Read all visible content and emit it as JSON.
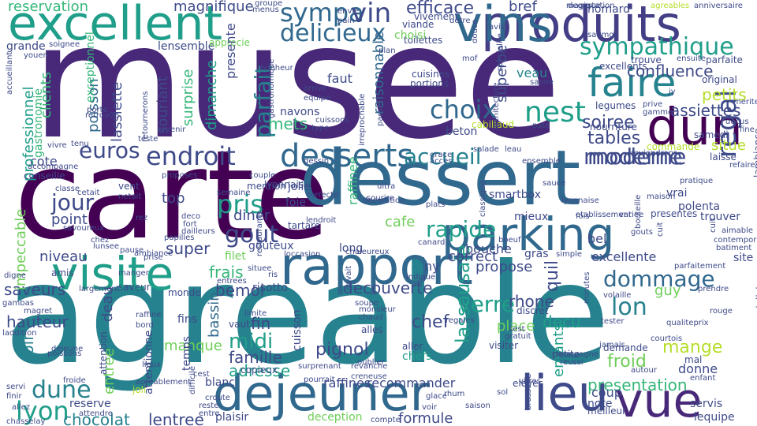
{
  "palette": {
    "c0": "#440154",
    "c1": "#482878",
    "c2": "#3e4a89",
    "c3": "#31688e",
    "c4": "#26828e",
    "c5": "#1f9e89",
    "c6": "#35b779",
    "c7": "#6ece58",
    "c8": "#b5de2b",
    "c9": "#fde725",
    "c10": "#433e85",
    "c11": "#2a788e"
  },
  "words": [
    {
      "text": "musee",
      "color": "c1"
    },
    {
      "text": "carte",
      "color": "c0"
    },
    {
      "text": "agreable",
      "color": "c4"
    },
    {
      "text": "dessert",
      "color": "c3"
    },
    {
      "text": "produits",
      "color": "c10"
    },
    {
      "text": "vins",
      "color": "c3"
    },
    {
      "text": "excellent",
      "color": "c5"
    },
    {
      "text": "rapport",
      "color": "c3"
    },
    {
      "text": "visite",
      "color": "c5"
    },
    {
      "text": "parking",
      "color": "c3"
    },
    {
      "text": "dejeuner",
      "color": "c3"
    },
    {
      "text": "lieu",
      "color": "c2"
    },
    {
      "text": "vue",
      "color": "c1"
    },
    {
      "text": "dun",
      "color": "c0"
    },
    {
      "text": "faire",
      "color": "c4"
    },
    {
      "text": "moment",
      "color": "c8"
    },
    {
      "text": "desserts",
      "color": "c3"
    },
    {
      "text": "endroit",
      "color": "c2"
    },
    {
      "text": "nest",
      "color": "c5"
    },
    {
      "text": "choix",
      "color": "c3"
    },
    {
      "text": "sympathique",
      "color": "c5"
    },
    {
      "text": "delicieux",
      "color": "c3"
    },
    {
      "text": "sympa",
      "color": "c3"
    },
    {
      "text": "vin",
      "color": "c2"
    },
    {
      "text": "efficace",
      "color": "c2"
    },
    {
      "text": "reservation",
      "color": "c6"
    },
    {
      "text": "magnifique",
      "color": "c2"
    },
    {
      "text": "dommage",
      "color": "c3"
    },
    {
      "text": "lon",
      "color": "c4"
    },
    {
      "text": "accueil",
      "color": "c4"
    },
    {
      "text": "moderne",
      "color": "c2"
    },
    {
      "text": "rapide",
      "color": "c5"
    },
    {
      "text": "jour",
      "color": "c2"
    },
    {
      "text": "pris",
      "color": "c5"
    },
    {
      "text": "gout",
      "color": "c2"
    },
    {
      "text": "euros",
      "color": "c2"
    },
    {
      "text": "parfait",
      "color": "c4"
    },
    {
      "text": "lassausaie",
      "color": "c5"
    },
    {
      "text": "verre",
      "color": "c5"
    },
    {
      "text": "midi",
      "color": "c5"
    },
    {
      "text": "dune",
      "color": "c4"
    },
    {
      "text": "lyon",
      "color": "c5"
    },
    {
      "text": "chocolat",
      "color": "c4"
    },
    {
      "text": "lentree",
      "color": "c2"
    },
    {
      "text": "formule",
      "color": "c2"
    },
    {
      "text": "mange",
      "color": "c8"
    },
    {
      "text": "froid",
      "color": "c7"
    },
    {
      "text": "regal",
      "color": "c2"
    },
    {
      "text": "tables",
      "color": "c2"
    },
    {
      "text": "soiree",
      "color": "c2"
    },
    {
      "text": "assiettes",
      "color": "c2"
    },
    {
      "text": "petits",
      "color": "c8"
    },
    {
      "text": "confluence",
      "color": "c2"
    },
    {
      "text": "veau",
      "color": "c4"
    },
    {
      "text": "faut",
      "color": "c2"
    },
    {
      "text": "mets",
      "color": "c6"
    },
    {
      "text": "cote",
      "color": "c2"
    },
    {
      "text": "top",
      "color": "c2"
    },
    {
      "text": "point",
      "color": "c2"
    },
    {
      "text": "niveau",
      "color": "c2"
    },
    {
      "text": "super",
      "color": "c2"
    },
    {
      "text": "saveurs",
      "color": "c2"
    },
    {
      "text": "hauteur",
      "color": "c2"
    },
    {
      "text": "chef",
      "color": "c2"
    },
    {
      "text": "pignol",
      "color": "c2"
    },
    {
      "text": "famille",
      "color": "c2"
    },
    {
      "text": "adresse",
      "color": "c5"
    },
    {
      "text": "fin",
      "color": "c2"
    },
    {
      "text": "decu",
      "color": "c5"
    },
    {
      "text": "quil",
      "color": "c2"
    },
    {
      "text": "presentation",
      "color": "c6"
    },
    {
      "text": "bemol",
      "color": "c2"
    },
    {
      "text": "frais",
      "color": "c6"
    },
    {
      "text": "propose",
      "color": "c2"
    },
    {
      "text": "correct",
      "color": "c2"
    },
    {
      "text": "rhone",
      "color": "c2"
    },
    {
      "text": "decouverte",
      "color": "c2"
    },
    {
      "text": "cafe",
      "color": "c7"
    },
    {
      "text": "manque",
      "color": "c7"
    },
    {
      "text": "recommander",
      "color": "c2"
    },
    {
      "text": "raffines",
      "color": "c2"
    },
    {
      "text": "excellente",
      "color": "c2"
    },
    {
      "text": "guy",
      "color": "c7"
    },
    {
      "text": "situe",
      "color": "c8"
    },
    {
      "text": "bref",
      "color": "c2"
    },
    {
      "text": "superbe",
      "color": "c2"
    },
    {
      "text": "raisonnable",
      "color": "c3"
    },
    {
      "text": "clients",
      "color": "c6"
    },
    {
      "text": "poisson",
      "color": "c3"
    },
    {
      "text": "professionnel",
      "color": "c5"
    },
    {
      "text": "impeccable",
      "color": "c7"
    },
    {
      "text": "soir",
      "color": "c4"
    },
    {
      "text": "entree",
      "color": "c7"
    },
    {
      "text": "deau",
      "color": "c2"
    },
    {
      "text": "bassin",
      "color": "c3"
    },
    {
      "text": "diner",
      "color": "c2"
    },
    {
      "text": "jolie",
      "color": "c2"
    },
    {
      "text": "foie",
      "color": "c2"
    },
    {
      "text": "place",
      "color": "c7"
    },
    {
      "text": "lequipe",
      "color": "c2"
    },
    {
      "text": "servis",
      "color": "c2"
    },
    {
      "text": "donne",
      "color": "c2"
    },
    {
      "text": "coup",
      "color": "c2"
    },
    {
      "text": "note",
      "color": "c2"
    },
    {
      "text": "enfants",
      "color": "c5"
    },
    {
      "text": "bouche",
      "color": "c2"
    },
    {
      "text": "gras",
      "color": "c2"
    },
    {
      "text": "reserve",
      "color": "c2"
    },
    {
      "text": "plaisir",
      "color": "c2"
    },
    {
      "text": "chefs",
      "color": "c5"
    },
    {
      "text": "blanc",
      "color": "c2"
    },
    {
      "text": "deception",
      "color": "c7"
    },
    {
      "text": "temps",
      "color": "c2"
    },
    {
      "text": "risotto",
      "color": "c2"
    },
    {
      "text": "fins",
      "color": "c2"
    },
    {
      "text": "vaut",
      "color": "c2"
    },
    {
      "text": "filet",
      "color": "c7"
    },
    {
      "text": "gouteux",
      "color": "c2"
    },
    {
      "text": "tartare",
      "color": "c2"
    },
    {
      "text": "long",
      "color": "c2"
    },
    {
      "text": "raffinee",
      "color": "c6"
    },
    {
      "text": "mieux",
      "color": "c2"
    },
    {
      "text": "smartbox",
      "color": "c2"
    },
    {
      "text": "polenta",
      "color": "c2"
    },
    {
      "text": "vrai",
      "color": "c2"
    },
    {
      "text": "trouver",
      "color": "c2"
    },
    {
      "text": "presentes",
      "color": "c2"
    },
    {
      "text": "bel",
      "color": "c2"
    },
    {
      "text": "site",
      "color": "c2"
    },
    {
      "text": "moderne",
      "color": "c2"
    },
    {
      "text": "beton",
      "color": "c2"
    },
    {
      "text": "cabillaud",
      "color": "c8"
    },
    {
      "text": "legumes",
      "color": "c2"
    },
    {
      "text": "nourriture",
      "color": "c2"
    },
    {
      "text": "samedi",
      "color": "c2"
    },
    {
      "text": "commande",
      "color": "c8"
    },
    {
      "text": "laisse",
      "color": "c2"
    },
    {
      "text": "excellents",
      "color": "c2"
    },
    {
      "text": "trouve",
      "color": "c2"
    },
    {
      "text": "ensuite",
      "color": "c2"
    },
    {
      "text": "parfaite",
      "color": "c2"
    },
    {
      "text": "original",
      "color": "c2"
    },
    {
      "text": "homard",
      "color": "c2"
    },
    {
      "text": "cuisines",
      "color": "c2"
    },
    {
      "text": "portions",
      "color": "c2"
    },
    {
      "text": "toilettes",
      "color": "c2"
    },
    {
      "text": "choisi",
      "color": "c7"
    },
    {
      "text": "viande",
      "color": "c2"
    },
    {
      "text": "vivement",
      "color": "c2"
    },
    {
      "text": "conseille",
      "color": "c2"
    },
    {
      "text": "surprise",
      "color": "c6"
    },
    {
      "text": "dimanche",
      "color": "c5"
    },
    {
      "text": "souriant",
      "color": "c2"
    },
    {
      "text": "lassiette",
      "color": "c2"
    },
    {
      "text": "lensemble",
      "color": "c2"
    },
    {
      "text": "grande",
      "color": "c2"
    },
    {
      "text": "lyonnais",
      "color": "c2"
    },
    {
      "text": "mention",
      "color": "c2"
    },
    {
      "text": "semaine",
      "color": "c2"
    },
    {
      "text": "vent",
      "color": "c2"
    },
    {
      "text": "amis",
      "color": "c2"
    },
    {
      "text": "monde",
      "color": "c2"
    },
    {
      "text": "saveur",
      "color": "c2"
    },
    {
      "text": "copieux",
      "color": "c2"
    },
    {
      "text": "alles",
      "color": "c2"
    },
    {
      "text": "aller",
      "color": "c2"
    },
    {
      "text": "visiter",
      "color": "c2"
    },
    {
      "text": "demande",
      "color": "c2"
    },
    {
      "text": "mal",
      "color": "c2"
    },
    {
      "text": "joli",
      "color": "c8"
    },
    {
      "text": "servi",
      "color": "c2"
    },
    {
      "text": "croute",
      "color": "c2"
    },
    {
      "text": "glace",
      "color": "c2"
    },
    {
      "text": "voir",
      "color": "c2"
    },
    {
      "text": "sol",
      "color": "c2"
    },
    {
      "text": "meilleur",
      "color": "c2"
    },
    {
      "text": "apprecie",
      "color": "c7"
    },
    {
      "text": "plan",
      "color": "c2"
    },
    {
      "text": "degustation",
      "color": "c2"
    },
    {
      "text": "anniversaire",
      "color": "c2"
    },
    {
      "text": "agreables",
      "color": "c8"
    },
    {
      "text": "saumon",
      "color": "c2"
    },
    {
      "text": "arrive",
      "color": "c2"
    },
    {
      "text": "equipe",
      "color": "c2"
    },
    {
      "text": "bonheur",
      "color": "c2"
    },
    {
      "text": "exceptionnel",
      "color": "c6"
    },
    {
      "text": "gastronomie",
      "color": "c6"
    },
    {
      "text": "gastronomique",
      "color": "c2"
    },
    {
      "text": "navons",
      "color": "c2"
    },
    {
      "text": "retournerons",
      "color": "c2"
    },
    {
      "text": "accompagne",
      "color": "c2"
    },
    {
      "text": "ultra",
      "color": "c2"
    },
    {
      "text": "sourire",
      "color": "c2"
    },
    {
      "text": "loccasion",
      "color": "c2"
    },
    {
      "text": "classique",
      "color": "c2"
    },
    {
      "text": "reviendrons",
      "color": "c2"
    },
    {
      "text": "grace",
      "color": "c2"
    },
    {
      "text": "acces",
      "color": "c2"
    },
    {
      "text": "salade",
      "color": "c2"
    },
    {
      "text": "leau",
      "color": "c2"
    },
    {
      "text": "ensemble",
      "color": "c2"
    },
    {
      "text": "maison",
      "color": "c2"
    },
    {
      "text": "etablissement",
      "color": "c2"
    },
    {
      "text": "chaleureux",
      "color": "c2"
    },
    {
      "text": "canard",
      "color": "c2"
    },
    {
      "text": "simple",
      "color": "c2"
    },
    {
      "text": "parfaitement",
      "color": "c2"
    },
    {
      "text": "prendre",
      "color": "c2"
    },
    {
      "text": "enfant",
      "color": "c2"
    },
    {
      "text": "minutes",
      "color": "c2"
    },
    {
      "text": "discret",
      "color": "c2"
    },
    {
      "text": "gratuit",
      "color": "c2"
    },
    {
      "text": "sest",
      "color": "c2"
    },
    {
      "text": "petite",
      "color": "c2"
    },
    {
      "text": "reussi",
      "color": "c2"
    },
    {
      "text": "autour",
      "color": "c2"
    },
    {
      "text": "courtois",
      "color": "c2"
    },
    {
      "text": "qualiteprix",
      "color": "c2"
    },
    {
      "text": "eleves",
      "color": "c2"
    },
    {
      "text": "attention",
      "color": "c2"
    },
    {
      "text": "regales",
      "color": "c2"
    },
    {
      "text": "monsieur",
      "color": "c2"
    },
    {
      "text": "soupe",
      "color": "c2"
    },
    {
      "text": "chaud",
      "color": "c2"
    },
    {
      "text": "limite",
      "color": "c2"
    },
    {
      "text": "deco",
      "color": "c2"
    },
    {
      "text": "fort",
      "color": "c2"
    },
    {
      "text": "dailleurs",
      "color": "c2"
    },
    {
      "text": "papilles",
      "color": "c2"
    },
    {
      "text": "rez",
      "color": "c2"
    },
    {
      "text": "savoureux",
      "color": "c2"
    },
    {
      "text": "netait",
      "color": "c2"
    },
    {
      "text": "cetait",
      "color": "c2"
    },
    {
      "text": "classe",
      "color": "c2"
    },
    {
      "text": "entrees",
      "color": "c2"
    },
    {
      "text": "largement",
      "color": "c2"
    },
    {
      "text": "digne",
      "color": "c2"
    },
    {
      "text": "gambas",
      "color": "c2"
    },
    {
      "text": "magret",
      "color": "c2"
    },
    {
      "text": "laddition",
      "color": "c2"
    },
    {
      "text": "dejeune",
      "color": "c2"
    },
    {
      "text": "poissons",
      "color": "c2"
    },
    {
      "text": "raffine",
      "color": "c2"
    },
    {
      "text": "bord",
      "color": "c2"
    },
    {
      "text": "agreablement",
      "color": "c2"
    },
    {
      "text": "cest",
      "color": "c2"
    },
    {
      "text": "froide",
      "color": "c2"
    },
    {
      "text": "chasselay",
      "color": "c2"
    },
    {
      "text": "finir",
      "color": "c2"
    },
    {
      "text": "allez",
      "color": "c2"
    },
    {
      "text": "attendre",
      "color": "c2"
    },
    {
      "text": "reste",
      "color": "c2"
    },
    {
      "text": "entre",
      "color": "c2"
    },
    {
      "text": "compte",
      "color": "c2"
    },
    {
      "text": "saison",
      "color": "c2"
    },
    {
      "text": "brasserie",
      "color": "c2"
    },
    {
      "text": "rhum",
      "color": "c2"
    },
    {
      "text": "vitres",
      "color": "c2"
    },
    {
      "text": "decoration",
      "color": "c2"
    },
    {
      "text": "pourrait",
      "color": "c2"
    },
    {
      "text": "revanche",
      "color": "c2"
    },
    {
      "text": "creneuse",
      "color": "c2"
    },
    {
      "text": "oublier",
      "color": "c2"
    },
    {
      "text": "lambiance",
      "color": "c2"
    },
    {
      "text": "aimable",
      "color": "c2"
    },
    {
      "text": "contemporain",
      "color": "c2"
    },
    {
      "text": "batiment",
      "color": "c2"
    },
    {
      "text": "merite",
      "color": "c2"
    },
    {
      "text": "fine",
      "color": "c2"
    },
    {
      "text": "cuit",
      "color": "c2"
    },
    {
      "text": "gouts",
      "color": "c2"
    },
    {
      "text": "pate",
      "color": "c2"
    },
    {
      "text": "decus",
      "color": "c2"
    },
    {
      "text": "jy",
      "color": "c2"
    },
    {
      "text": "prive",
      "color": "c2"
    },
    {
      "text": "gamme",
      "color": "c2"
    },
    {
      "text": "pratique",
      "color": "c2"
    },
    {
      "text": "variee",
      "color": "c2"
    },
    {
      "text": "bouteille",
      "color": "c2"
    },
    {
      "text": "tester",
      "color": "c2"
    },
    {
      "text": "jamais",
      "color": "c2"
    },
    {
      "text": "champagne",
      "color": "c2"
    },
    {
      "text": "mof",
      "color": "c2"
    },
    {
      "text": "saone",
      "color": "c2"
    },
    {
      "text": "specialite",
      "color": "c2"
    },
    {
      "text": "avis",
      "color": "c2"
    },
    {
      "text": "douce",
      "color": "c2"
    },
    {
      "text": "detre",
      "color": "c2"
    },
    {
      "text": "groupe",
      "color": "c2"
    },
    {
      "text": "menus",
      "color": "c2"
    },
    {
      "text": "pain",
      "color": "c2"
    },
    {
      "text": "envie",
      "color": "c2"
    },
    {
      "text": "soignee",
      "color": "c2"
    },
    {
      "text": "youen",
      "color": "c2"
    },
    {
      "text": "accueillant",
      "color": "c2"
    },
    {
      "text": "teste",
      "color": "c2"
    },
    {
      "text": "cuissons",
      "color": "c2"
    },
    {
      "text": "type",
      "color": "c2"
    },
    {
      "text": "irreprochable",
      "color": "c2"
    },
    {
      "text": "passer",
      "color": "c2"
    },
    {
      "text": "revenir",
      "color": "c2"
    },
    {
      "text": "proposes",
      "color": "c2"
    },
    {
      "text": "cuisson",
      "color": "c2"
    },
    {
      "text": "restaurants",
      "color": "c2"
    },
    {
      "text": "manger",
      "color": "c2"
    },
    {
      "text": "retrouve",
      "color": "c2"
    },
    {
      "text": "porte",
      "color": "c2"
    },
    {
      "text": "tenu",
      "color": "c2"
    },
    {
      "text": "vivre",
      "color": "c2"
    },
    {
      "text": "ambiance",
      "color": "c2"
    },
    {
      "text": "prise",
      "color": "c2"
    },
    {
      "text": "pause",
      "color": "c2"
    },
    {
      "text": "lunsee",
      "color": "c2"
    },
    {
      "text": "chez",
      "color": "c2"
    },
    {
      "text": "attentionne",
      "color": "c2"
    },
    {
      "text": "difficile",
      "color": "c2"
    },
    {
      "text": "ris",
      "color": "c2"
    },
    {
      "text": "lieux",
      "color": "c2"
    },
    {
      "text": "ny",
      "color": "c2"
    },
    {
      "text": "architecture",
      "color": "c2"
    },
    {
      "text": "lendroit",
      "color": "c2"
    },
    {
      "text": "magique",
      "color": "c2"
    },
    {
      "text": "correcte",
      "color": "c2"
    },
    {
      "text": "boeuf",
      "color": "c2"
    },
    {
      "text": "lyonnaise",
      "color": "c2"
    },
    {
      "text": "sauce",
      "color": "c2"
    },
    {
      "text": "fois",
      "color": "c2"
    },
    {
      "text": "rouge",
      "color": "c2"
    },
    {
      "text": "volaille",
      "color": "c2"
    },
    {
      "text": "delicieuse",
      "color": "c2"
    },
    {
      "text": "refaire",
      "color": "c2"
    },
    {
      "text": "couple",
      "color": "c2"
    },
    {
      "text": "surprenant",
      "color": "c2"
    },
    {
      "text": "indique",
      "color": "c2"
    },
    {
      "text": "navait",
      "color": "c2"
    },
    {
      "text": "situee",
      "color": "c2"
    },
    {
      "text": "plats",
      "color": "c2"
    },
    {
      "text": "presente",
      "color": "c2"
    },
    {
      "text": "cuit",
      "color": "c2"
    },
    {
      "text": "dessin",
      "color": "c2"
    }
  ]
}
